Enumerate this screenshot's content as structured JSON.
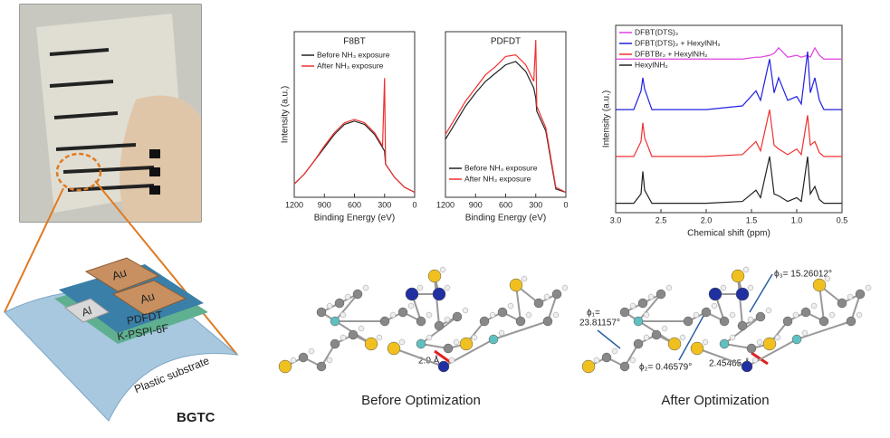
{
  "chart_data": [
    {
      "type": "line",
      "title": "F8BT",
      "xlabel": "Binding Energy (eV)",
      "ylabel": "Intensity (a.u.)",
      "x": [
        1200,
        1100,
        1000,
        900,
        800,
        700,
        600,
        500,
        400,
        320,
        300,
        290,
        200,
        100,
        0
      ],
      "series": [
        {
          "name": "Before NH₃ exposure",
          "color": "#222222",
          "values": [
            8,
            14,
            22,
            30,
            38,
            44,
            46,
            44,
            38,
            30,
            28,
            20,
            12,
            6,
            3
          ]
        },
        {
          "name": "After NH₃ exposure",
          "color": "#f03030",
          "values": [
            8,
            14,
            22,
            31,
            39,
            45,
            47,
            45,
            39,
            31,
            72,
            20,
            12,
            6,
            3
          ]
        }
      ],
      "xlim": [
        1200,
        0
      ],
      "xticks": [
        1200,
        900,
        600,
        300,
        0
      ],
      "ylim": [
        0,
        100
      ],
      "legend": "upper right"
    },
    {
      "type": "line",
      "title": "PDFDT",
      "xlabel": "Binding Energy (eV)",
      "x": [
        1200,
        1100,
        1000,
        900,
        800,
        700,
        600,
        500,
        400,
        320,
        300,
        290,
        200,
        100,
        0
      ],
      "series": [
        {
          "name": "Before NH₃ exposure",
          "color": "#222222",
          "values": [
            35,
            45,
            55,
            63,
            70,
            75,
            80,
            82,
            76,
            66,
            60,
            52,
            40,
            5,
            3
          ]
        },
        {
          "name": "After NH₃ exposure",
          "color": "#f03030",
          "values": [
            38,
            48,
            58,
            66,
            74,
            79,
            85,
            86,
            80,
            70,
            95,
            55,
            42,
            6,
            3
          ]
        }
      ],
      "xlim": [
        1200,
        0
      ],
      "xticks": [
        1200,
        900,
        600,
        300,
        0
      ],
      "ylim": [
        0,
        100
      ],
      "legend": "lower left"
    },
    {
      "type": "line",
      "xlabel": "Chemical shift (ppm)",
      "ylabel": "Intensity (a.u.)",
      "x": [
        3.0,
        2.8,
        2.72,
        2.7,
        2.68,
        2.6,
        2.0,
        1.6,
        1.45,
        1.4,
        1.3,
        1.25,
        1.2,
        1.1,
        1.0,
        0.95,
        0.88,
        0.85,
        0.8,
        0.75,
        0.7,
        0.5
      ],
      "series": [
        {
          "name": "DFBT(DTS)₂",
          "color": "#e040e0",
          "values": [
            82,
            82,
            82,
            82,
            82,
            82,
            82,
            82,
            83,
            83,
            84,
            85,
            88,
            83,
            84,
            83,
            84,
            83,
            88,
            84,
            82,
            82
          ]
        },
        {
          "name": "DFBT(DTS)₂ + HexylNH₂",
          "color": "#2020e0",
          "values": [
            55,
            55,
            65,
            72,
            66,
            55,
            55,
            57,
            65,
            60,
            82,
            64,
            72,
            60,
            62,
            58,
            86,
            64,
            72,
            60,
            55,
            55
          ]
        },
        {
          "name": "DFBTBr₂ + HexylNH₂",
          "color": "#f03030",
          "values": [
            30,
            30,
            38,
            48,
            40,
            30,
            30,
            31,
            38,
            33,
            55,
            36,
            34,
            31,
            34,
            31,
            52,
            36,
            38,
            32,
            30,
            30
          ]
        },
        {
          "name": "HexylNH₂",
          "color": "#222222",
          "values": [
            5,
            5,
            10,
            22,
            12,
            5,
            5,
            6,
            12,
            8,
            30,
            10,
            9,
            6,
            8,
            6,
            30,
            10,
            14,
            7,
            5,
            5
          ]
        }
      ],
      "xlim": [
        3.0,
        0.5
      ],
      "xticks": [
        {
          "value": 3,
          "label": "3.0"
        },
        2.5,
        {
          "value": 2,
          "label": "2.0"
        },
        1.5,
        {
          "value": 1,
          "label": "1.0"
        },
        0.5
      ],
      "ylim": [
        0,
        100
      ],
      "legend": "upper left"
    }
  ],
  "device": {
    "electrodes": [
      "Au",
      "Au"
    ],
    "gate": "Al",
    "semiconductor": "PDFDT",
    "dielectric": "K-PSPI-6F",
    "substrate": "Plastic substrate",
    "label": "BGTC"
  },
  "molecules": [
    {
      "caption": "Before Optimization",
      "annotations": [
        "2.0 Å"
      ]
    },
    {
      "caption": "After Optimization",
      "annotations": [
        "ϕ₁=",
        "23.81157°",
        "ϕ₂= 0.46579°",
        "ϕ₃= 15.26012°",
        "2.45465 Å"
      ]
    }
  ]
}
